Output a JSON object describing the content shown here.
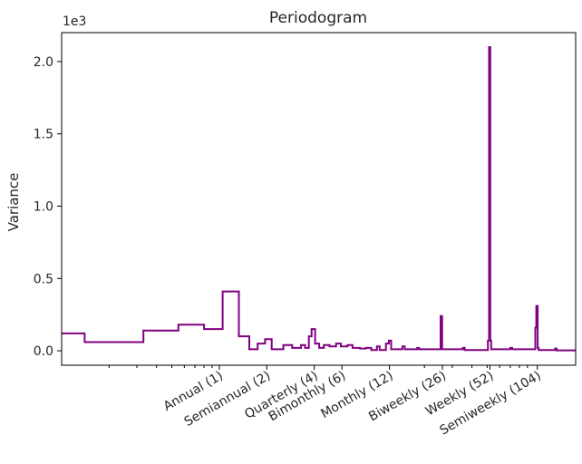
{
  "chart_data": {
    "type": "line",
    "title": "Periodogram",
    "ylabel": "Variance",
    "xlabel": "",
    "y_multiplier_label": "1e3",
    "xscale": "log",
    "xlim": [
      0.1,
      182
    ],
    "ylim": [
      -0.1,
      2.2
    ],
    "grid": false,
    "line_color": "#800080",
    "y_ticks": [
      0.0,
      0.5,
      1.0,
      1.5,
      2.0
    ],
    "y_tick_labels": [
      "0.0",
      "0.5",
      "1.0",
      "1.5",
      "2.0"
    ],
    "x_ticks": [
      1,
      2,
      4,
      6,
      12,
      26,
      52,
      104
    ],
    "x_tick_labels": [
      "Annual (1)",
      "Semiannual (2)",
      "Quarterly (4)",
      "Bimonthly (6)",
      "Monthly (12)",
      "Biweekly (26)",
      "Weekly (52)",
      "Semiweekly (104)"
    ],
    "step_points": [
      [
        0.1,
        0.12
      ],
      [
        0.14,
        0.12
      ],
      [
        0.14,
        0.06
      ],
      [
        0.33,
        0.06
      ],
      [
        0.33,
        0.14
      ],
      [
        0.55,
        0.14
      ],
      [
        0.55,
        0.18
      ],
      [
        0.8,
        0.18
      ],
      [
        0.8,
        0.15
      ],
      [
        1.05,
        0.15
      ],
      [
        1.05,
        0.41
      ],
      [
        1.33,
        0.41
      ],
      [
        1.33,
        0.1
      ],
      [
        1.55,
        0.1
      ],
      [
        1.55,
        0.01
      ],
      [
        1.75,
        0.01
      ],
      [
        1.75,
        0.05
      ],
      [
        1.95,
        0.05
      ],
      [
        1.95,
        0.08
      ],
      [
        2.15,
        0.08
      ],
      [
        2.15,
        0.01
      ],
      [
        2.55,
        0.01
      ],
      [
        2.55,
        0.04
      ],
      [
        2.9,
        0.04
      ],
      [
        2.9,
        0.02
      ],
      [
        3.3,
        0.02
      ],
      [
        3.3,
        0.04
      ],
      [
        3.5,
        0.04
      ],
      [
        3.5,
        0.02
      ],
      [
        3.7,
        0.02
      ],
      [
        3.7,
        0.1
      ],
      [
        3.85,
        0.1
      ],
      [
        3.85,
        0.15
      ],
      [
        4.05,
        0.15
      ],
      [
        4.05,
        0.05
      ],
      [
        4.3,
        0.05
      ],
      [
        4.3,
        0.02
      ],
      [
        4.6,
        0.02
      ],
      [
        4.6,
        0.04
      ],
      [
        5.0,
        0.04
      ],
      [
        5.0,
        0.03
      ],
      [
        5.5,
        0.03
      ],
      [
        5.5,
        0.05
      ],
      [
        5.9,
        0.05
      ],
      [
        5.9,
        0.03
      ],
      [
        6.5,
        0.03
      ],
      [
        6.5,
        0.04
      ],
      [
        7.0,
        0.04
      ],
      [
        7.0,
        0.02
      ],
      [
        7.8,
        0.02
      ],
      [
        7.8,
        0.015
      ],
      [
        8.5,
        0.015
      ],
      [
        8.5,
        0.02
      ],
      [
        9.2,
        0.02
      ],
      [
        9.2,
        0.005
      ],
      [
        10.0,
        0.005
      ],
      [
        10.0,
        0.03
      ],
      [
        10.4,
        0.03
      ],
      [
        10.4,
        0.005
      ],
      [
        11.4,
        0.005
      ],
      [
        11.4,
        0.05
      ],
      [
        11.9,
        0.05
      ],
      [
        11.9,
        0.07
      ],
      [
        12.3,
        0.07
      ],
      [
        12.3,
        0.01
      ],
      [
        14.5,
        0.01
      ],
      [
        14.5,
        0.03
      ],
      [
        15.0,
        0.03
      ],
      [
        15.0,
        0.01
      ],
      [
        18.0,
        0.01
      ],
      [
        18.0,
        0.02
      ],
      [
        18.5,
        0.02
      ],
      [
        18.5,
        0.01
      ],
      [
        25.3,
        0.01
      ],
      [
        25.3,
        0.24
      ],
      [
        25.9,
        0.24
      ],
      [
        25.9,
        0.01
      ],
      [
        35.0,
        0.01
      ],
      [
        35.0,
        0.02
      ],
      [
        36.0,
        0.02
      ],
      [
        36.0,
        0.005
      ],
      [
        50.5,
        0.005
      ],
      [
        50.5,
        0.07
      ],
      [
        51.4,
        0.07
      ],
      [
        51.4,
        2.1
      ],
      [
        52.3,
        2.1
      ],
      [
        52.3,
        0.07
      ],
      [
        53.0,
        0.07
      ],
      [
        53.0,
        0.01
      ],
      [
        70.0,
        0.01
      ],
      [
        70.0,
        0.02
      ],
      [
        72.0,
        0.02
      ],
      [
        72.0,
        0.01
      ],
      [
        101.0,
        0.01
      ],
      [
        101.0,
        0.16
      ],
      [
        102.5,
        0.16
      ],
      [
        102.5,
        0.31
      ],
      [
        104.5,
        0.31
      ],
      [
        104.5,
        0.02
      ],
      [
        106.0,
        0.02
      ],
      [
        106.0,
        0.005
      ],
      [
        135.0,
        0.005
      ],
      [
        135.0,
        0.015
      ],
      [
        138.0,
        0.015
      ],
      [
        138.0,
        0.003
      ],
      [
        182.0,
        0.003
      ]
    ]
  }
}
